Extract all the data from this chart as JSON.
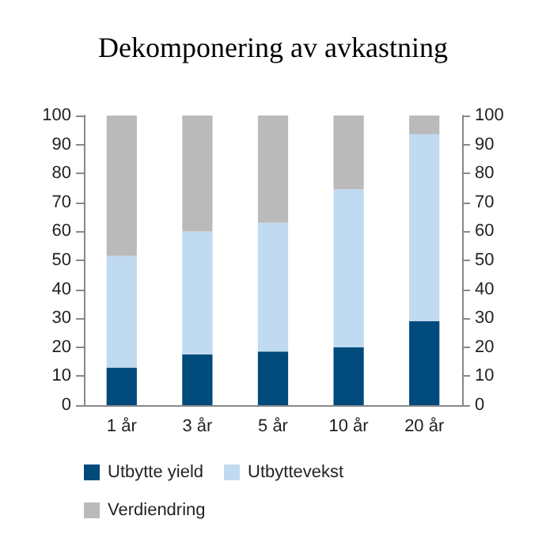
{
  "chart_data": {
    "type": "bar",
    "title": "Dekomponering av avkastning",
    "categories": [
      "1 år",
      "3 år",
      "5 år",
      "10 år",
      "20 år"
    ],
    "stacked": true,
    "series": [
      {
        "name": "Utbytte yield",
        "color": "#004a7c",
        "values": [
          13,
          17.5,
          18.5,
          20,
          29
        ]
      },
      {
        "name": "Utbyttevekst",
        "color": "#c0daf1",
        "values": [
          38.5,
          42.5,
          44.5,
          54.5,
          64.5
        ]
      },
      {
        "name": "Verdiendring",
        "color": "#bababa",
        "values": [
          48.5,
          40,
          37,
          25.5,
          6.5
        ]
      }
    ],
    "ylim": [
      0,
      100
    ],
    "yticks": [
      0,
      10,
      20,
      30,
      40,
      50,
      60,
      70,
      80,
      90,
      100
    ],
    "y2lim": [
      0,
      100
    ],
    "y2ticks": [
      0,
      10,
      20,
      30,
      40,
      50,
      60,
      70,
      80,
      90,
      100
    ],
    "grid": false,
    "legend": "bottom"
  }
}
